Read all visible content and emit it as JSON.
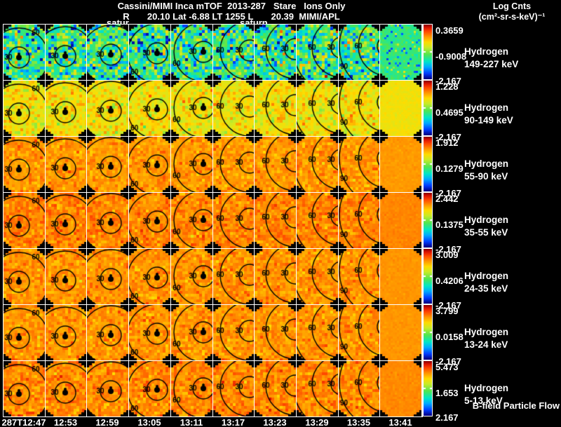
{
  "header": {
    "title": "Cassini/MIMI Inca mTOF  2013-287   Stare   Ions Only",
    "subtitle": "R       20.10 Lat -6.88 LT 1255 L       20.39  MIMI/APL",
    "colorbar_title_line1": "Log Cnts",
    "colorbar_title_line2": "(cm²-sr-s-keV)⁻¹",
    "satur_label_1": "satur",
    "satur_label_2": "saturn"
  },
  "footer": {
    "bfield_label": "B-field Particle Flow"
  },
  "rows": [
    {
      "species": "Hydrogen",
      "energy": "149-227 keV",
      "cb_max": "0.3659",
      "cb_mid": "-0.9008",
      "cb_min": "-2.167"
    },
    {
      "species": "Hydrogen",
      "energy": "90-149 keV",
      "cb_max": "1.228",
      "cb_mid": "0.4695",
      "cb_min": "-2.167"
    },
    {
      "species": "Hydrogen",
      "energy": "55-90 keV",
      "cb_max": "1.912",
      "cb_mid": "0.1279",
      "cb_min": "-2.167"
    },
    {
      "species": "Hydrogen",
      "energy": "35-55 keV",
      "cb_max": "2.442",
      "cb_mid": "0.1375",
      "cb_min": "-2.167"
    },
    {
      "species": "Hydrogen",
      "energy": "24-35 keV",
      "cb_max": "3.009",
      "cb_mid": "0.4206",
      "cb_min": "-2.167"
    },
    {
      "species": "Hydrogen",
      "energy": "13-24 keV",
      "cb_max": "3.799",
      "cb_mid": "0.0158",
      "cb_min": "-2.167"
    },
    {
      "species": "Hydrogen",
      "energy": "5-13 keV",
      "cb_max": "5.473",
      "cb_mid": "1.653",
      "cb_min": "2.167"
    }
  ],
  "time_labels": [
    "287T12:47",
    "12:53",
    "12:59",
    "13:05",
    "13:11",
    "13:17",
    "13:23",
    "13:29",
    "13:35",
    "13:41"
  ],
  "colors": {
    "background": "#000000",
    "text": "#ffffff",
    "separator": "#ffffff",
    "contour": "#000000"
  },
  "chart_data": {
    "type": "heatmap",
    "title": "Cassini/MIMI Inca mTOF 2013-287 Stare Ions Only",
    "subtitle_values": {
      "R": "20.10",
      "Lat": "-6.88",
      "LT": "1255",
      "L": "20.39",
      "source": "MIMI/APL"
    },
    "colorbar_title": "Log Cnts (cm²-sr-s-keV)⁻¹",
    "colormap": "rainbow",
    "grid": {
      "rows": 7,
      "columns": 10
    },
    "columns_time": [
      "287T12:47",
      "12:53",
      "12:59",
      "13:05",
      "13:11",
      "13:17",
      "13:23",
      "13:29",
      "13:35",
      "13:41"
    ],
    "contour_levels_deg": [
      30,
      60,
      90
    ],
    "contour_label_values": [
      "30",
      "60",
      "90"
    ],
    "rows": [
      {
        "label": "Hydrogen 149-227 keV",
        "scale_max": 0.3659,
        "scale_mid": -0.9008,
        "scale_min": -2.167,
        "dominant_color": "#3cc9a0",
        "render": {
          "mean": 0.4,
          "sigma": 0.13
        }
      },
      {
        "label": "Hydrogen 90-149 keV",
        "scale_max": 1.228,
        "scale_mid": 0.4695,
        "scale_min": -2.167,
        "dominant_color": "#f2d624",
        "render": {
          "mean": 0.655,
          "sigma": 0.062
        }
      },
      {
        "label": "Hydrogen 55-90 keV",
        "scale_max": 1.912,
        "scale_mid": 0.1279,
        "scale_min": -2.167,
        "dominant_color": "#ff8c1e",
        "render": {
          "mean": 0.775,
          "sigma": 0.038
        }
      },
      {
        "label": "Hydrogen 35-55 keV",
        "scale_max": 2.442,
        "scale_mid": 0.1375,
        "scale_min": -2.167,
        "dominant_color": "#ff7a14",
        "render": {
          "mean": 0.8,
          "sigma": 0.04
        }
      },
      {
        "label": "Hydrogen 24-35 keV",
        "scale_max": 3.009,
        "scale_mid": 0.4206,
        "scale_min": -2.167,
        "dominant_color": "#ff8419",
        "render": {
          "mean": 0.78,
          "sigma": 0.038
        }
      },
      {
        "label": "Hydrogen 13-24 keV",
        "scale_max": 3.799,
        "scale_mid": 0.0158,
        "scale_min": -2.167,
        "dominant_color": "#ff8419",
        "render": {
          "mean": 0.78,
          "sigma": 0.038
        }
      },
      {
        "label": "Hydrogen 5-13 keV",
        "scale_max": 5.473,
        "scale_mid": 1.653,
        "scale_min": 2.167,
        "dominant_color": "#ff7a14",
        "render": {
          "mean": 0.795,
          "sigma": 0.042
        }
      }
    ]
  }
}
